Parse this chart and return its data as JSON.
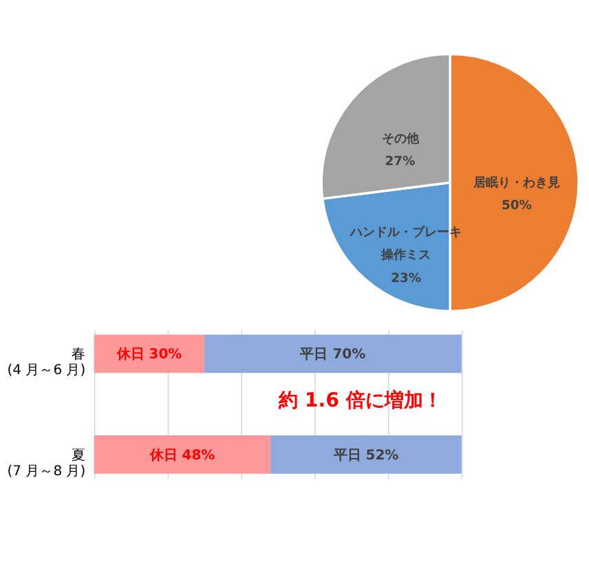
{
  "chart_data": [
    {
      "type": "pie",
      "categories": [
        "居眠り・わき見",
        "ハンドル・ブレーキ操作ミス",
        "その他"
      ],
      "values": [
        50,
        23,
        27
      ],
      "colors": [
        "#ed7d31",
        "#5b9bd5",
        "#a5a5a5"
      ],
      "value_labels": [
        "50%",
        "23%",
        "27%"
      ],
      "legend": false
    },
    {
      "type": "bar",
      "orientation": "horizontal",
      "stacked": true,
      "categories": [
        "春 (4 月～6 月)",
        "夏 (7 月～8 月)"
      ],
      "series": [
        {
          "color": "#ff9999",
          "values": [
            30,
            48
          ],
          "value_labels": [
            "休日 30%",
            "休日 48%"
          ]
        },
        {
          "color": "#8faadc",
          "values": [
            70,
            52
          ],
          "value_labels": [
            "平日 70%",
            "平日 52%"
          ]
        }
      ],
      "xlim": [
        0,
        100
      ],
      "xticks": [
        {
          "value": 0,
          "label": null
        },
        {
          "value": 20,
          "label": null
        },
        {
          "value": 40,
          "label": null
        },
        {
          "value": 60,
          "label": null
        },
        {
          "value": 80,
          "label": null
        },
        {
          "value": 100,
          "label": null
        }
      ],
      "grid": "x",
      "tick_labels": "y",
      "legend": false,
      "annotations": [
        "約 1.6 倍に増加！"
      ]
    }
  ]
}
